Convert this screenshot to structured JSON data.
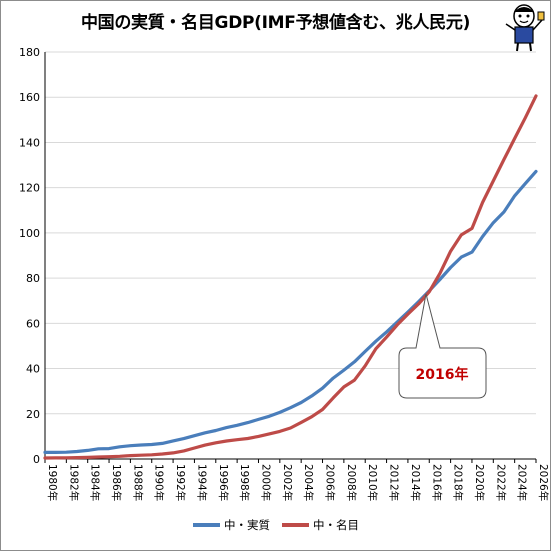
{
  "title": "中国の実質・名目GDP(IMF予想値含む、兆人民元)",
  "colors": {
    "real": "#4a7ebb",
    "nominal": "#be4b48",
    "annotation_text": "#c00000",
    "grid": "#d9d9d9"
  },
  "icons": {
    "mascot": "mascot-icon"
  },
  "chart_data": {
    "type": "line",
    "title": "中国の実質・名目GDP(IMF予想値含む、兆人民元)",
    "xlabel": "",
    "ylabel": "",
    "ylim": [
      0,
      180
    ],
    "yticks": [
      0,
      20,
      40,
      60,
      80,
      100,
      120,
      140,
      160,
      180
    ],
    "xticks": [
      "1980年",
      "1982年",
      "1984年",
      "1986年",
      "1988年",
      "1990年",
      "1992年",
      "1994年",
      "1996年",
      "1998年",
      "2000年",
      "2002年",
      "2004年",
      "2006年",
      "2008年",
      "2010年",
      "2012年",
      "2014年",
      "2016年",
      "2018年",
      "2020年",
      "2022年",
      "2024年",
      "2026年"
    ],
    "x": [
      1980,
      1981,
      1982,
      1983,
      1984,
      1985,
      1986,
      1987,
      1988,
      1989,
      1990,
      1991,
      1992,
      1993,
      1994,
      1995,
      1996,
      1997,
      1998,
      1999,
      2000,
      2001,
      2002,
      2003,
      2004,
      2005,
      2006,
      2007,
      2008,
      2009,
      2010,
      2011,
      2012,
      2013,
      2014,
      2015,
      2016,
      2017,
      2018,
      2019,
      2020,
      2021,
      2022,
      2023,
      2024,
      2025,
      2026
    ],
    "grid": true,
    "legend": "bottom",
    "series": [
      {
        "name": "中・実質",
        "values": [
          2.9,
          2.9,
          3.0,
          3.3,
          3.8,
          4.5,
          4.6,
          5.4,
          5.9,
          6.2,
          6.4,
          6.9,
          8.0,
          9.0,
          10.3,
          11.6,
          12.6,
          13.9,
          14.9,
          16.1,
          17.5,
          18.9,
          20.6,
          22.7,
          25.0,
          27.9,
          31.3,
          35.8,
          39.3,
          43.0,
          47.6,
          52.1,
          56.2,
          60.6,
          65.0,
          69.6,
          74.4,
          79.4,
          84.7,
          89.3,
          91.5,
          98.4,
          104.5,
          109.3,
          116.4,
          121.8,
          127.2
        ]
      },
      {
        "name": "中・名目",
        "values": [
          0.46,
          0.49,
          0.53,
          0.6,
          0.72,
          0.9,
          1.03,
          1.21,
          1.5,
          1.7,
          1.87,
          2.19,
          2.7,
          3.57,
          4.86,
          6.13,
          7.18,
          7.97,
          8.52,
          9.06,
          10.0,
          11.1,
          12.2,
          13.7,
          16.2,
          18.7,
          21.9,
          27.0,
          31.9,
          34.9,
          41.2,
          48.8,
          53.9,
          59.3,
          64.1,
          68.6,
          74.0,
          82.1,
          91.9,
          99.1,
          102.0,
          113.5,
          123.0,
          132.5,
          141.8,
          150.9,
          160.6
        ]
      }
    ],
    "annotations": [
      {
        "text": "2016年",
        "x": 2016,
        "y": 74
      }
    ]
  }
}
